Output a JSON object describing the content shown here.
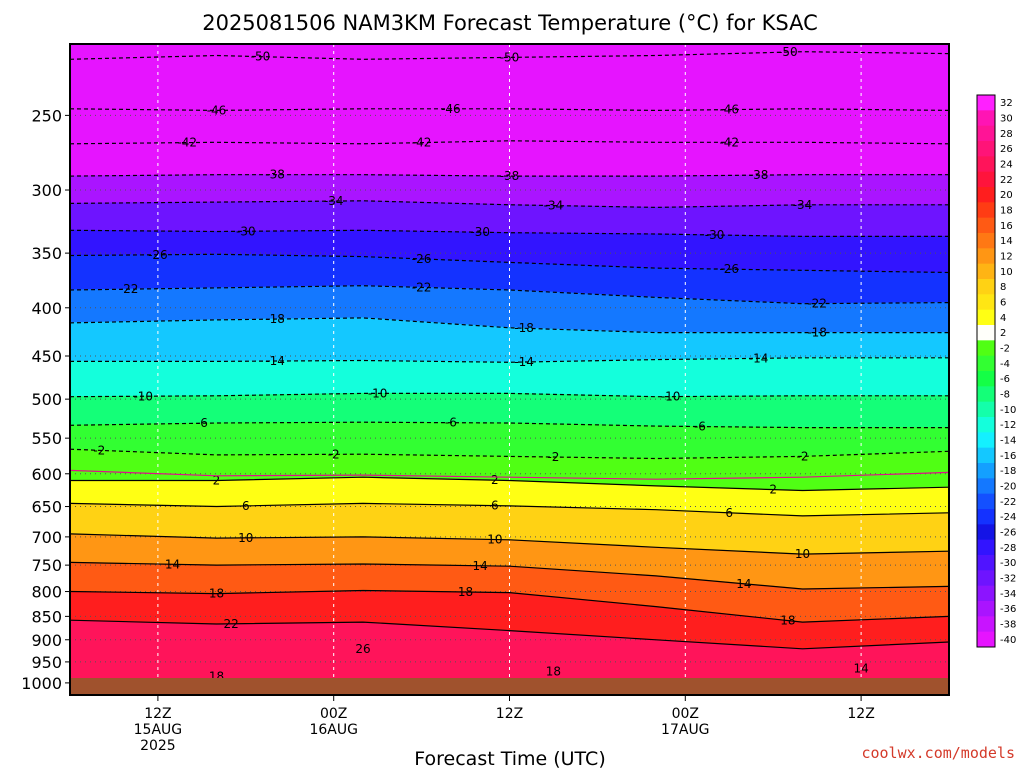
{
  "chart_data": {
    "type": "heatmap",
    "title": "2025081506 NAM3KM Forecast Temperature (°C) for KSAC",
    "xlabel": "Forecast Time (UTC)",
    "ylabel": "",
    "credit": "coolwx.com/models",
    "y_scale": "log-pressure",
    "ylim_hpa": [
      1030,
      210
    ],
    "y_ticks": [
      250,
      300,
      350,
      400,
      450,
      500,
      550,
      600,
      650,
      700,
      750,
      800,
      850,
      900,
      950,
      1000
    ],
    "x_ticks": [
      {
        "hour": 12,
        "line1": "12Z",
        "line2": "15AUG",
        "line3": "2025"
      },
      {
        "hour": 24,
        "line1": "00Z",
        "line2": "16AUG",
        "line3": ""
      },
      {
        "hour": 36,
        "line1": "12Z",
        "line2": "",
        "line3": ""
      },
      {
        "hour": 48,
        "line1": "00Z",
        "line2": "17AUG",
        "line3": ""
      },
      {
        "hour": 60,
        "line1": "12Z",
        "line2": "",
        "line3": ""
      }
    ],
    "xlim_hours": [
      6,
      66
    ],
    "colorbar_levels": [
      32,
      30,
      28,
      26,
      24,
      22,
      20,
      18,
      16,
      14,
      12,
      10,
      8,
      6,
      4,
      2,
      -2,
      -4,
      -6,
      -8,
      -10,
      -12,
      -14,
      -16,
      -18,
      -20,
      -22,
      -24,
      -26,
      -28,
      -30,
      -32,
      -34,
      -36,
      -38,
      -40
    ],
    "colorbar_colors": [
      "#ff20ff",
      "#ff14b4",
      "#ff1496",
      "#ff1478",
      "#ff145a",
      "#ff143c",
      "#ff1e1e",
      "#ff3c14",
      "#ff5a14",
      "#ff7814",
      "#ff9614",
      "#ffb414",
      "#ffd214",
      "#ffe614",
      "#ffff14",
      "#fffffa",
      "#50ff14",
      "#32ff32",
      "#14ff46",
      "#14ff78",
      "#14ffaa",
      "#14ffdc",
      "#14f0ff",
      "#14c8ff",
      "#14a0ff",
      "#1478ff",
      "#1450ff",
      "#1432ff",
      "#1414e6",
      "#3214ff",
      "#5014ff",
      "#6e14ff",
      "#8c14ff",
      "#aa14ff",
      "#c814ff",
      "#e614ff"
    ],
    "contours": [
      {
        "value": -50,
        "pressures": [
          218,
          216,
          218,
          217,
          216,
          214,
          215
        ],
        "labels": [
          {
            "hour": 19,
            "text": "-50"
          },
          {
            "hour": 36,
            "text": "-50"
          },
          {
            "hour": 55,
            "text": "-50"
          }
        ]
      },
      {
        "value": -46,
        "pressures": [
          246,
          247,
          246,
          246,
          247,
          246,
          247
        ],
        "labels": [
          {
            "hour": 16,
            "text": "-46"
          },
          {
            "hour": 32,
            "text": "-46"
          },
          {
            "hour": 51,
            "text": "-46"
          }
        ]
      },
      {
        "value": -42,
        "pressures": [
          268,
          267,
          268,
          266,
          267,
          267,
          268
        ],
        "labels": [
          {
            "hour": 14,
            "text": "-42"
          },
          {
            "hour": 30,
            "text": "-42"
          },
          {
            "hour": 51,
            "text": "-42"
          }
        ]
      },
      {
        "value": -38,
        "pressures": [
          290,
          289,
          289,
          290,
          290,
          289,
          289
        ],
        "labels": [
          {
            "hour": 20,
            "text": "-38"
          },
          {
            "hour": 36,
            "text": "-38"
          },
          {
            "hour": 53,
            "text": "-38"
          }
        ]
      },
      {
        "value": -34,
        "pressures": [
          310,
          309,
          308,
          311,
          313,
          311,
          311
        ],
        "labels": [
          {
            "hour": 24,
            "text": "-34"
          },
          {
            "hour": 39,
            "text": "-34"
          },
          {
            "hour": 56,
            "text": "-34"
          }
        ]
      },
      {
        "value": -30,
        "pressures": [
          331,
          332,
          331,
          333,
          334,
          336,
          336
        ],
        "labels": [
          {
            "hour": 18,
            "text": "-30"
          },
          {
            "hour": 34,
            "text": "-30"
          },
          {
            "hour": 50,
            "text": "-30"
          }
        ]
      },
      {
        "value": -26,
        "pressures": [
          352,
          351,
          353,
          358,
          363,
          365,
          367
        ],
        "labels": [
          {
            "hour": 12,
            "text": "-26"
          },
          {
            "hour": 30,
            "text": "-26"
          },
          {
            "hour": 51,
            "text": "-26"
          }
        ]
      },
      {
        "value": -22,
        "pressures": [
          383,
          381,
          379,
          383,
          390,
          396,
          395
        ],
        "labels": [
          {
            "hour": 10,
            "text": "-22"
          },
          {
            "hour": 30,
            "text": "-22"
          },
          {
            "hour": 57,
            "text": "-22"
          }
        ]
      },
      {
        "value": -18,
        "pressures": [
          415,
          412,
          410,
          420,
          425,
          425,
          425
        ],
        "labels": [
          {
            "hour": 20,
            "text": "-18"
          },
          {
            "hour": 37,
            "text": "-18"
          },
          {
            "hour": 57,
            "text": "-18"
          }
        ]
      },
      {
        "value": -14,
        "pressures": [
          456,
          456,
          455,
          457,
          454,
          452,
          452
        ],
        "labels": [
          {
            "hour": 20,
            "text": "-14"
          },
          {
            "hour": 37,
            "text": "-14"
          },
          {
            "hour": 53,
            "text": "-14"
          }
        ]
      },
      {
        "value": -10,
        "pressures": [
          497,
          496,
          493,
          493,
          497,
          496,
          496
        ],
        "labels": [
          {
            "hour": 11,
            "text": "-10"
          },
          {
            "hour": 27,
            "text": "-10"
          },
          {
            "hour": 47,
            "text": "-10"
          }
        ]
      },
      {
        "value": -6,
        "pressures": [
          533,
          530,
          529,
          530,
          534,
          536,
          536
        ],
        "labels": [
          {
            "hour": 15,
            "text": "-6"
          },
          {
            "hour": 32,
            "text": "-6"
          },
          {
            "hour": 49,
            "text": "-6"
          }
        ]
      },
      {
        "value": -2,
        "pressures": [
          565,
          573,
          572,
          575,
          578,
          575,
          568
        ],
        "labels": [
          {
            "hour": 8,
            "text": "-2"
          },
          {
            "hour": 24,
            "text": "-2"
          },
          {
            "hour": 39,
            "text": "-2"
          },
          {
            "hour": 56,
            "text": "-2"
          }
        ]
      },
      {
        "value": 2,
        "pressures": [
          610,
          610,
          605,
          610,
          618,
          625,
          620
        ],
        "labels": [
          {
            "hour": 16,
            "text": "2"
          },
          {
            "hour": 35,
            "text": "2"
          },
          {
            "hour": 54,
            "text": "2"
          }
        ]
      },
      {
        "value": 6,
        "pressures": [
          645,
          650,
          645,
          649,
          655,
          665,
          660
        ],
        "labels": [
          {
            "hour": 18,
            "text": "6"
          },
          {
            "hour": 35,
            "text": "6"
          },
          {
            "hour": 51,
            "text": "6"
          }
        ]
      },
      {
        "value": 10,
        "pressures": [
          695,
          702,
          700,
          705,
          718,
          730,
          725
        ],
        "labels": [
          {
            "hour": 18,
            "text": "10"
          },
          {
            "hour": 35,
            "text": "10"
          },
          {
            "hour": 56,
            "text": "10"
          }
        ]
      },
      {
        "value": 14,
        "pressures": [
          745,
          750,
          748,
          752,
          770,
          795,
          790
        ],
        "labels": [
          {
            "hour": 13,
            "text": "14"
          },
          {
            "hour": 34,
            "text": "14"
          },
          {
            "hour": 52,
            "text": "14"
          }
        ]
      },
      {
        "value": 18,
        "pressures": [
          800,
          804,
          798,
          802,
          830,
          862,
          850
        ],
        "labels": [
          {
            "hour": 16,
            "text": "18"
          },
          {
            "hour": 33,
            "text": "18"
          },
          {
            "hour": 55,
            "text": "18"
          }
        ]
      },
      {
        "value": 22,
        "pressures": [
          858,
          866,
          862,
          880,
          900,
          920,
          905
        ],
        "labels": [
          {
            "hour": 17,
            "text": "22"
          }
        ]
      }
    ],
    "low_level_labels": [
      {
        "hour": 26,
        "pressure": 920,
        "text": "26"
      },
      {
        "hour": 16,
        "pressure": 985,
        "text": "18"
      },
      {
        "hour": 39,
        "pressure": 973,
        "text": "18"
      },
      {
        "hour": 60,
        "pressure": 965,
        "text": "14"
      }
    ]
  }
}
